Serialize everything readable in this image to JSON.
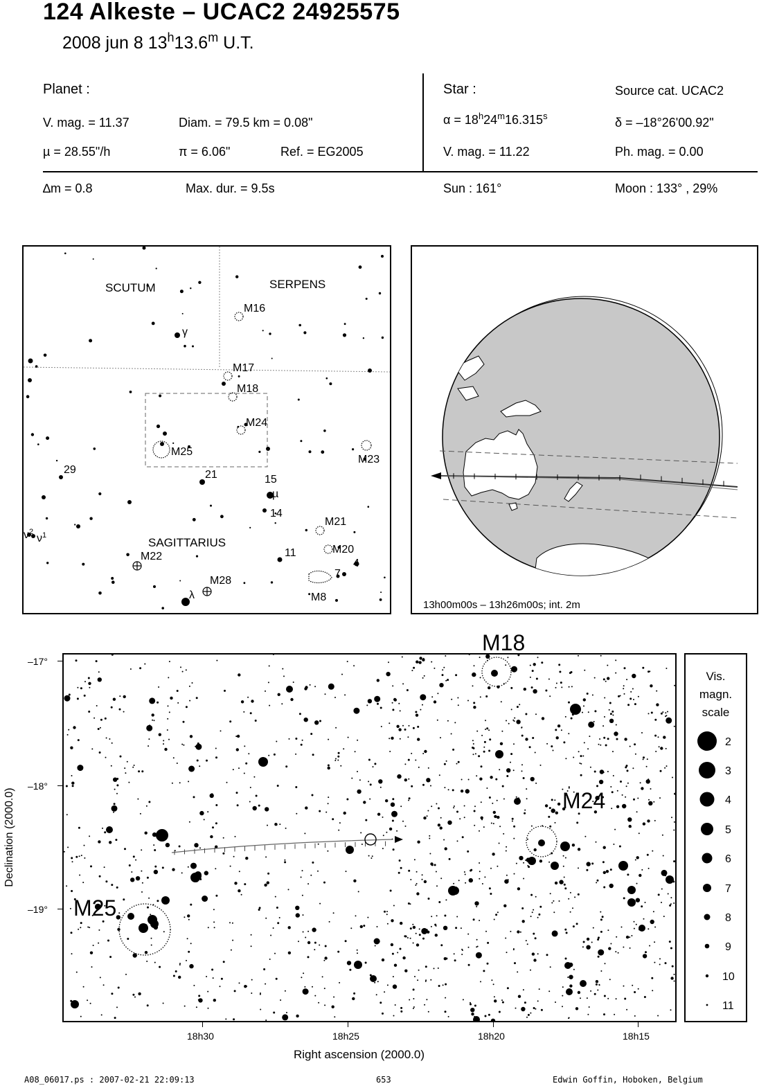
{
  "header": {
    "title": "124 Alkeste  –  UCAC2 24925575",
    "date_text": "2008 jun  8  13",
    "hour_unit": "h",
    "minutes_text": "13.6",
    "minute_unit": "m",
    "ut_label": " U.T."
  },
  "planet": {
    "heading": "Planet :",
    "vmag": "V. mag. = 11.37",
    "diam": "Diam. = 79.5 km = 0.08\"",
    "mu": "µ =  28.55\"/h",
    "pi": "π =  6.06\"",
    "ref": "Ref. = EG2005"
  },
  "star": {
    "heading": "Star :",
    "source": "Source cat.  UCAC2",
    "ra_prefix": "α = 18",
    "ra_h": "h",
    "ra_mid": "24",
    "ra_m": "m",
    "ra_sec": "16.315",
    "ra_s": "s",
    "dec": "δ = –18°26'00.92\"",
    "vmag": "V. mag. = 11.22",
    "phmag": "Ph. mag. =  0.00"
  },
  "event": {
    "delta_m": "∆m = 0.8",
    "max_dur": "Max. dur. = 9.5s",
    "sun": "Sun : 161°",
    "moon": "Moon : 133° , 29%"
  },
  "finder": {
    "constellations": [
      "SCUTUM",
      "SERPENS",
      "SAGITTARIUS"
    ],
    "objects": {
      "m16": "M16",
      "m17": "M17",
      "m18": "M18",
      "m24": "M24",
      "m25": "M25",
      "m23": "M23",
      "m21": "M21",
      "m20": "M20",
      "m22": "M22",
      "m28": "M28",
      "m8": "M8"
    },
    "stars": {
      "gamma": "γ",
      "n29": "29",
      "n21": "21",
      "n15": "15",
      "mu": "µ",
      "n14": "14",
      "nu2_base": "ν",
      "nu2_sup": "2",
      "nu1_base": "ν",
      "nu1_sup": "1",
      "n11": "11",
      "n4": "4",
      "n7": "7",
      "lambda": "λ"
    }
  },
  "globe": {
    "caption": "13h00m00s – 13h26m00s; int.  2m"
  },
  "detail": {
    "labels": {
      "m18": "M18",
      "m24": "M24",
      "m25": "M25"
    },
    "y_ticks": [
      "–17°",
      "–18°",
      "–19°"
    ],
    "x_ticks": [
      "18h30",
      "18h25",
      "18h20",
      "18h15"
    ],
    "ylabel": "Declination (2000.0)",
    "xlabel": "Right ascension (2000.0)"
  },
  "legend": {
    "title_line1": "Vis.",
    "title_line2": "magn.",
    "title_line3": "scale",
    "mags": [
      "2",
      "3",
      "4",
      "5",
      "6",
      "7",
      "8",
      "9",
      "10",
      "11"
    ]
  },
  "footer": {
    "file": "A08_06017.ps : 2007-02-21 22:09:13",
    "page": "653",
    "author": "Edwin Goffin, Hoboken, Belgium"
  }
}
